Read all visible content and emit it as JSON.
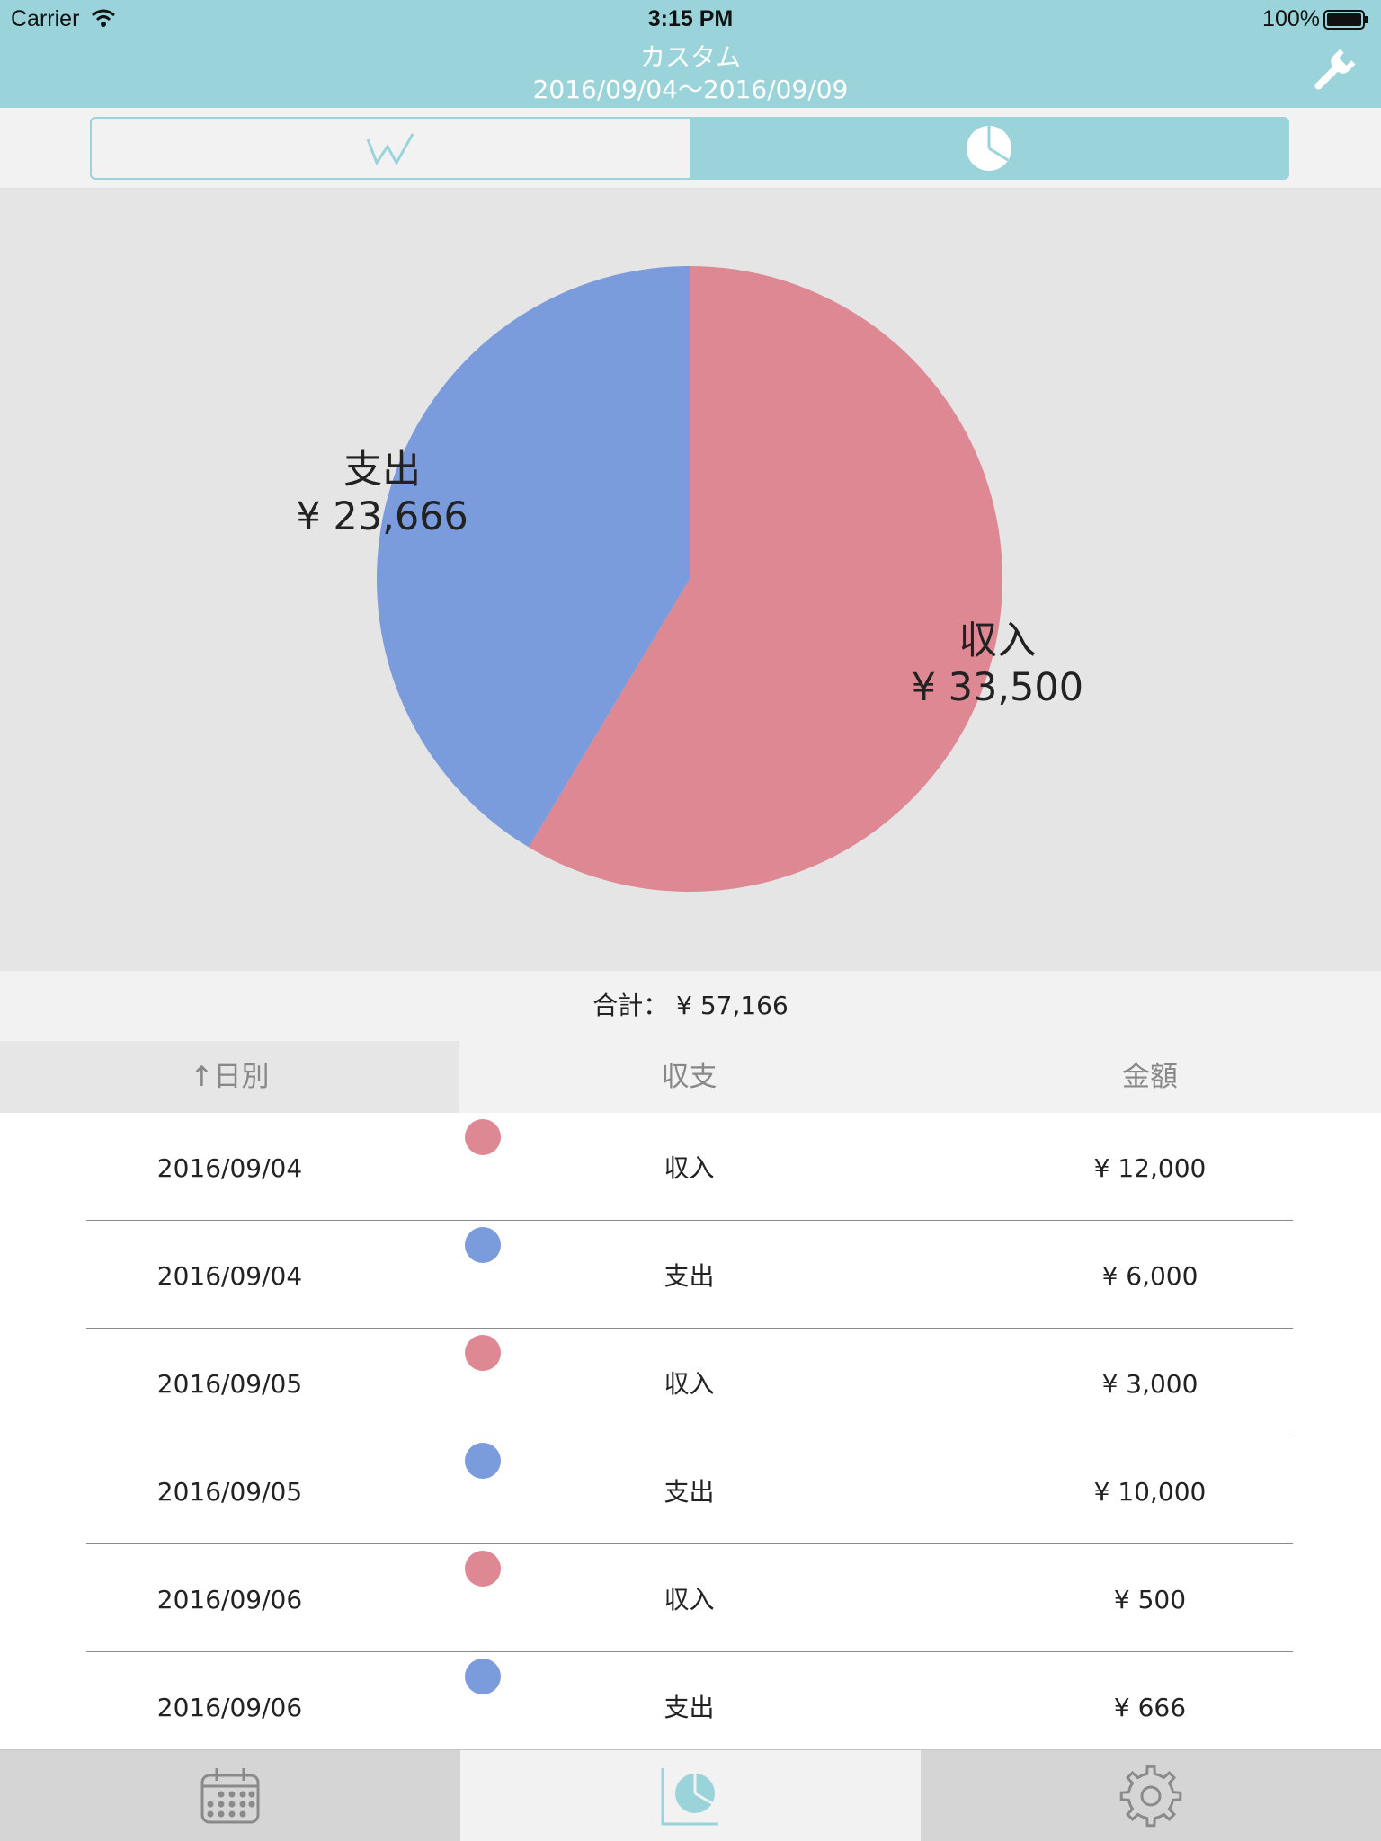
{
  "status_bar": {
    "carrier": "Carrier",
    "time": "3:15 PM",
    "battery_percent": "100%"
  },
  "nav": {
    "title": "カスタム",
    "date_range": "2016/09/04〜2016/09/09",
    "settings_icon": "wrench-icon"
  },
  "view_toggle": {
    "options": [
      {
        "icon": "line-chart-icon",
        "selected": false
      },
      {
        "icon": "pie-chart-icon",
        "selected": true
      }
    ]
  },
  "colors": {
    "accent": "#9ad4da",
    "income": "#dd8893",
    "expense": "#7a9bdc",
    "chart_background": "#e5e5e5"
  },
  "chart_data": {
    "type": "pie",
    "slices": [
      {
        "label": "収入",
        "value": 33500,
        "display": "¥ 33,500",
        "color": "#dd8893"
      },
      {
        "label": "支出",
        "value": 23666,
        "display": "¥ 23,666",
        "color": "#7a9bdc"
      }
    ]
  },
  "total": {
    "text": "合計： ¥ 57,166"
  },
  "table": {
    "headers": {
      "date": "↑日別",
      "type": "収支",
      "amount": "金額"
    },
    "rows": [
      {
        "date": "2016/09/04",
        "type": "収入",
        "amount": "¥ 12,000",
        "color": "#dd8893"
      },
      {
        "date": "2016/09/04",
        "type": "支出",
        "amount": "¥ 6,000",
        "color": "#7a9bdc"
      },
      {
        "date": "2016/09/05",
        "type": "収入",
        "amount": "¥ 3,000",
        "color": "#dd8893"
      },
      {
        "date": "2016/09/05",
        "type": "支出",
        "amount": "¥ 10,000",
        "color": "#7a9bdc"
      },
      {
        "date": "2016/09/06",
        "type": "収入",
        "amount": "¥ 500",
        "color": "#dd8893"
      },
      {
        "date": "2016/09/06",
        "type": "支出",
        "amount": "¥ 666",
        "color": "#7a9bdc"
      }
    ]
  },
  "tab_bar": {
    "tabs": [
      {
        "icon": "calendar-icon",
        "active": false
      },
      {
        "icon": "chart-icon",
        "active": true
      },
      {
        "icon": "gear-icon",
        "active": false
      }
    ]
  }
}
